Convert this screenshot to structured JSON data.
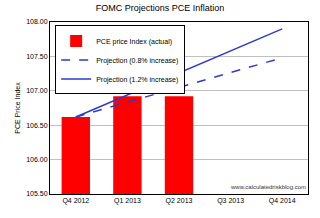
{
  "chart_data": {
    "type": "bar",
    "title": "FOMC Projections PCE Inflation",
    "y_label": "PCE Price Index",
    "categories": [
      "Q4 2012",
      "Q1 2013",
      "Q2 2013",
      "Q3 2013",
      "Q4 2014"
    ],
    "series": [
      {
        "name": "PCE price Index (actual)",
        "type": "bar",
        "color": "#ff0000",
        "values": [
          106.62,
          106.92,
          106.92,
          null,
          null
        ]
      },
      {
        "name": "Projection (0.8% increase)",
        "type": "line",
        "color": "#2a3ccc",
        "line_style": "dashed",
        "values": [
          106.62,
          null,
          null,
          null,
          107.48
        ]
      },
      {
        "name": "Projection (1.2% increase)",
        "type": "line",
        "color": "#2a3ccc",
        "line_style": "solid",
        "values": [
          106.62,
          null,
          null,
          null,
          107.9
        ]
      }
    ],
    "ylim": [
      105.5,
      108
    ],
    "yticks": [
      {
        "value": 105.5,
        "label": "105.50"
      },
      {
        "value": 106,
        "label": "106.00"
      },
      {
        "value": 106.5,
        "label": "106.50"
      },
      {
        "value": 107,
        "label": "107.00"
      },
      {
        "value": 107.5,
        "label": "107.50"
      },
      {
        "value": 108,
        "label": "108.00"
      }
    ],
    "grid": true,
    "legend": "upper left",
    "annotations": [
      {
        "text": "www.calculatedriskblog.com"
      }
    ]
  }
}
